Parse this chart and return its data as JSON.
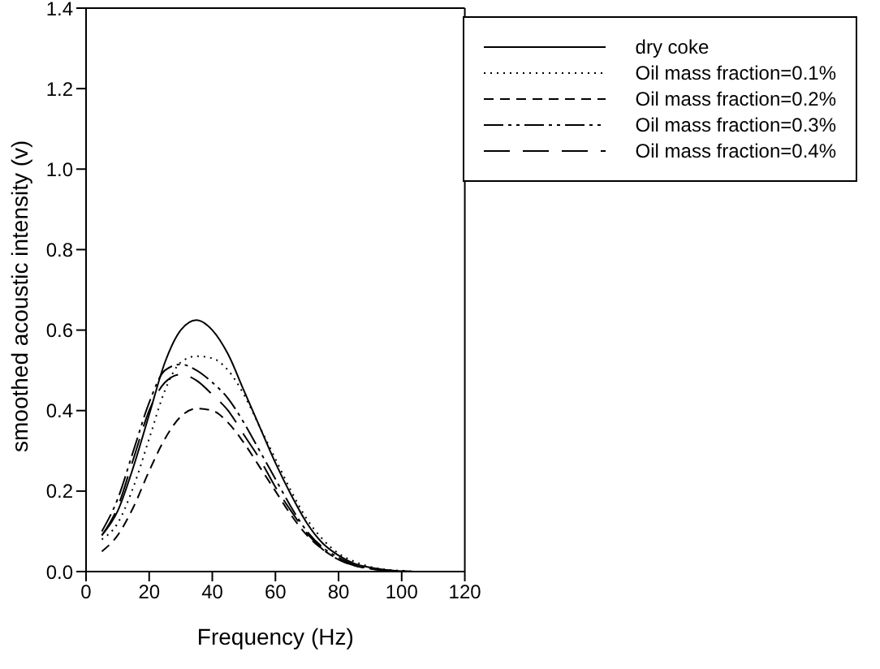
{
  "chart_data": {
    "type": "line",
    "xlabel": "Frequency (Hz)",
    "ylabel": "smoothed acoustic intensity (v)",
    "x": [
      5,
      10,
      15,
      20,
      25,
      30,
      35,
      40,
      45,
      50,
      55,
      60,
      65,
      70,
      75,
      80,
      85,
      90,
      95,
      100,
      105,
      110
    ],
    "series": [
      {
        "name": "dry coke",
        "color": "#000000",
        "line_style": "solid",
        "values": [
          0.09,
          0.15,
          0.26,
          0.39,
          0.52,
          0.6,
          0.625,
          0.6,
          0.54,
          0.45,
          0.36,
          0.27,
          0.19,
          0.12,
          0.07,
          0.04,
          0.02,
          0.01,
          0.004,
          0.001,
          0,
          0
        ]
      },
      {
        "name": "Oil mass fraction=0.1%",
        "color": "#000000",
        "line_style": "dotted",
        "values": [
          0.08,
          0.12,
          0.21,
          0.33,
          0.45,
          0.52,
          0.535,
          0.53,
          0.5,
          0.44,
          0.36,
          0.28,
          0.2,
          0.13,
          0.08,
          0.045,
          0.025,
          0.012,
          0.005,
          0.002,
          0,
          0
        ]
      },
      {
        "name": "Oil mass fraction=0.2%",
        "color": "#000000",
        "line_style": "dashed",
        "values": [
          0.05,
          0.09,
          0.16,
          0.25,
          0.33,
          0.385,
          0.405,
          0.4,
          0.37,
          0.32,
          0.26,
          0.2,
          0.14,
          0.09,
          0.055,
          0.03,
          0.015,
          0.007,
          0.003,
          0.001,
          0,
          0
        ]
      },
      {
        "name": "Oil mass fraction=0.3%",
        "color": "#000000",
        "line_style": "dashdot",
        "values": [
          0.1,
          0.18,
          0.3,
          0.42,
          0.5,
          0.515,
          0.5,
          0.47,
          0.43,
          0.37,
          0.3,
          0.23,
          0.16,
          0.1,
          0.06,
          0.035,
          0.017,
          0.008,
          0.003,
          0.001,
          0,
          0
        ]
      },
      {
        "name": "Oil mass fraction=0.4%",
        "color": "#000000",
        "line_style": "longdash",
        "values": [
          0.09,
          0.16,
          0.28,
          0.4,
          0.47,
          0.49,
          0.475,
          0.44,
          0.4,
          0.34,
          0.28,
          0.21,
          0.15,
          0.095,
          0.055,
          0.03,
          0.015,
          0.007,
          0.003,
          0.001,
          0,
          0
        ]
      }
    ],
    "xlim": [
      0,
      120
    ],
    "xticks": [
      0,
      20,
      40,
      60,
      80,
      100,
      120
    ],
    "ylim": [
      0,
      1.4
    ],
    "yticks": [
      {
        "value": 0,
        "label": "0.0"
      },
      {
        "value": 0.2,
        "label": "0.2"
      },
      {
        "value": 0.4,
        "label": "0.4"
      },
      {
        "value": 0.6,
        "label": "0.6"
      },
      {
        "value": 0.8,
        "label": "0.8"
      },
      {
        "value": 1,
        "label": "1.0"
      },
      {
        "value": 1.2,
        "label": "1.2"
      },
      {
        "value": 1.4,
        "label": "1.4"
      }
    ],
    "grid": false,
    "legend": "top right",
    "marker": "none"
  }
}
